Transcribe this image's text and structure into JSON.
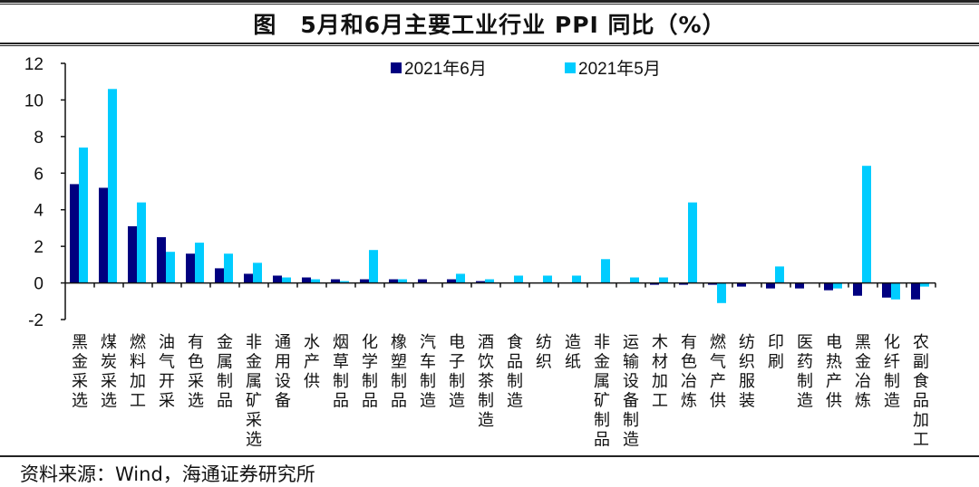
{
  "title": "图　5月和6月主要工业行业 PPI 同比（%）",
  "source": "资料来源：Wind，海通证券研究所",
  "colors": {
    "series_jun": "#000080",
    "series_may": "#00CCFF",
    "axis": "#111111"
  },
  "chart_data": {
    "type": "bar",
    "title": "图　5月和6月主要工业行业 PPI 同比（%）",
    "xlabel": "",
    "ylabel": "",
    "ylim": [
      -2,
      12
    ],
    "yticks": [
      -2,
      0,
      2,
      4,
      6,
      8,
      10,
      12
    ],
    "grid": false,
    "legend_position": "top",
    "categories": [
      "黑金采选",
      "煤炭采选",
      "燃料加工",
      "油气开采",
      "有色采选",
      "金属制品",
      "非金属矿采选",
      "通用设备",
      "水产供",
      "烟草制品",
      "化学制品",
      "橡塑制品",
      "汽车制造",
      "电子制造",
      "酒饮茶制造",
      "食品制造",
      "纺织",
      "造纸",
      "非金属矿制品",
      "运输设备制造",
      "木材加工",
      "有色冶炼",
      "燃气产供",
      "纺织服装",
      "印刷",
      "医药制造",
      "电热产供",
      "黑金冶炼",
      "化纤制造",
      "农副食品加工"
    ],
    "series": [
      {
        "name": "2021年6月",
        "color": "#000080",
        "values": [
          5.4,
          5.2,
          3.1,
          2.5,
          1.6,
          0.8,
          0.5,
          0.4,
          0.3,
          0.2,
          0.2,
          0.2,
          0.2,
          0.2,
          0.1,
          0.0,
          0.0,
          0.0,
          0.0,
          0.0,
          -0.1,
          -0.1,
          -0.1,
          -0.2,
          -0.3,
          -0.3,
          -0.4,
          -0.7,
          -0.8,
          -0.9
        ]
      },
      {
        "name": "2021年5月",
        "color": "#00CCFF",
        "values": [
          7.4,
          10.6,
          4.4,
          1.7,
          2.2,
          1.6,
          1.1,
          0.3,
          0.2,
          0.1,
          1.8,
          0.2,
          0.0,
          0.5,
          0.2,
          0.4,
          0.4,
          0.4,
          1.3,
          0.3,
          0.3,
          4.4,
          -1.1,
          0.0,
          0.9,
          0.0,
          -0.3,
          6.4,
          -0.9,
          -0.2
        ]
      }
    ]
  }
}
